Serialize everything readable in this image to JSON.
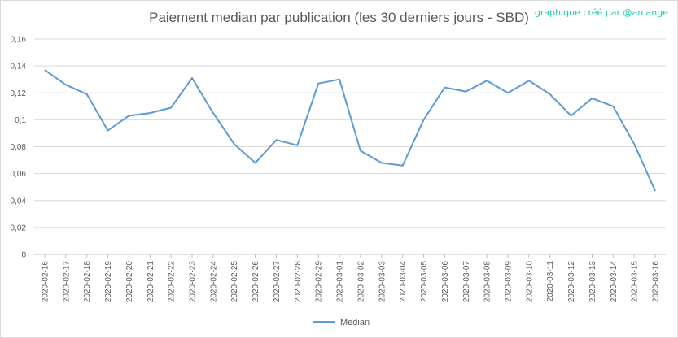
{
  "chart_data": {
    "type": "line",
    "title": "Paiement median par publication (les 30 derniers jours - SBD)",
    "credit": "graphique créé par @arcange",
    "xlabel": "",
    "ylabel": "",
    "ylim": [
      0,
      0.16
    ],
    "yticks": [
      "0",
      "0,02",
      "0,04",
      "0,06",
      "0,08",
      "0,1",
      "0,12",
      "0,14",
      "0,16"
    ],
    "grid": true,
    "legend": "bottom",
    "color": "#5b9bd5",
    "categories": [
      "2020-02-16",
      "2020-02-17",
      "2020-02-18",
      "2020-02-19",
      "2020-02-20",
      "2020-02-21",
      "2020-02-22",
      "2020-02-23",
      "2020-02-24",
      "2020-02-25",
      "2020-02-26",
      "2020-02-27",
      "2020-02-28",
      "2020-02-29",
      "2020-03-01",
      "2020-03-02",
      "2020-03-03",
      "2020-03-04",
      "2020-03-05",
      "2020-03-06",
      "2020-03-07",
      "2020-03-08",
      "2020-03-09",
      "2020-03-10",
      "2020-03-11",
      "2020-03-12",
      "2020-03-13",
      "2020-03-14",
      "2020-03-15",
      "2020-03-16"
    ],
    "series": [
      {
        "name": "Median",
        "values": [
          0.137,
          0.126,
          0.119,
          0.092,
          0.103,
          0.105,
          0.109,
          0.131,
          0.105,
          0.082,
          0.068,
          0.085,
          0.081,
          0.127,
          0.13,
          0.077,
          0.068,
          0.066,
          0.1,
          0.124,
          0.121,
          0.129,
          0.12,
          0.129,
          0.119,
          0.103,
          0.116,
          0.11,
          0.082,
          0.047
        ]
      }
    ]
  }
}
